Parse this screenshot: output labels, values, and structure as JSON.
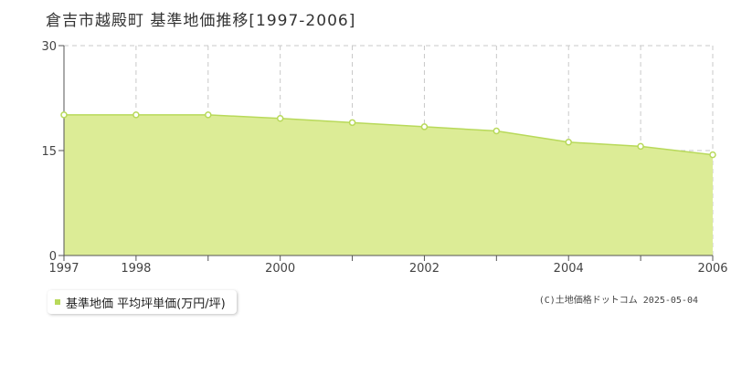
{
  "page": {
    "title": "倉吉市越殿町 基準地価推移[1997-2006]",
    "copyright": "(C)土地価格ドットコム 2025-05-04"
  },
  "legend": {
    "label": "基準地価 平均坪単価(万円/坪)"
  },
  "colors": {
    "fill": "#dcec96",
    "line": "#b8d95a",
    "marker_fill": "#ffffff",
    "grid": "#c8c8c8",
    "axis": "#555555"
  },
  "chart_data": {
    "type": "area",
    "title": "倉吉市越殿町 基準地価推移[1997-2006]",
    "x": [
      1997,
      1998,
      1999,
      2000,
      2001,
      2002,
      2003,
      2004,
      2005,
      2006
    ],
    "x_tick_labels": [
      "1997",
      "1998",
      "2000",
      "2002",
      "2004",
      "2006"
    ],
    "y_ticks": [
      0,
      15,
      30
    ],
    "xlim": [
      1997,
      2006
    ],
    "ylim": [
      0,
      30
    ],
    "series": [
      {
        "name": "基準地価 平均坪単価(万円/坪)",
        "values": [
          20.1,
          20.1,
          20.1,
          19.6,
          19.0,
          18.4,
          17.8,
          16.2,
          15.6,
          14.4
        ]
      }
    ],
    "grid": true,
    "legend_position": "bottom-left"
  }
}
